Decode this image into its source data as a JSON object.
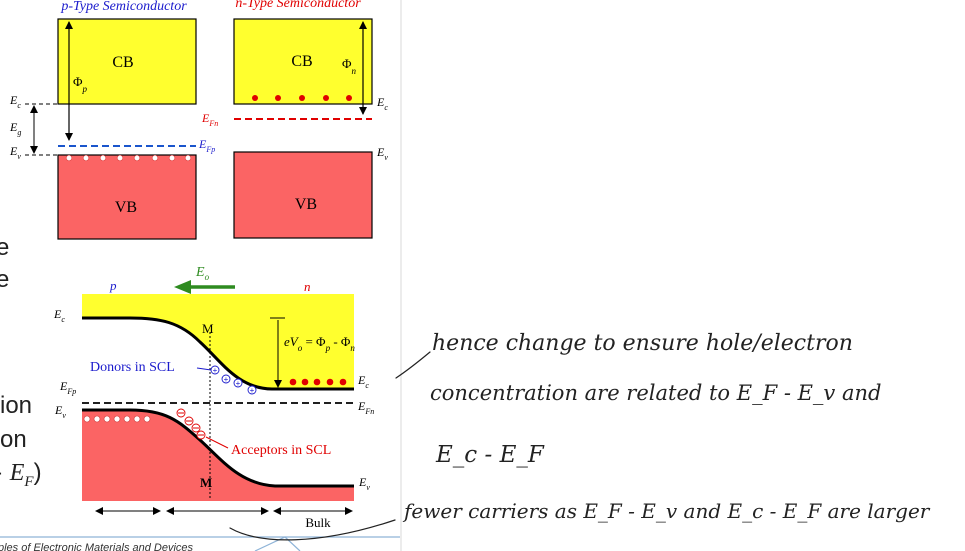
{
  "slide": {
    "left_fragments": [
      "e",
      "e",
      "ion",
      "on",
      "E",
      "F",
      ")"
    ],
    "footer_text": "ples of Electronic Materials and Devices"
  },
  "p_type": {
    "title": "p-Type Semiconductor",
    "cb": "CB",
    "vb": "VB",
    "phi": "Φ",
    "phi_sub": "p",
    "ec": "E",
    "ec_sub": "c",
    "eg": "E",
    "eg_sub": "g",
    "ev": "E",
    "ev_sub": "v",
    "efp": "E",
    "efp_sub": "Fp"
  },
  "n_type": {
    "title": "n-Type Semiconductor",
    "cb": "CB",
    "vb": "VB",
    "phi": "Φ",
    "phi_sub": "n",
    "ec": "E",
    "ec_sub": "c",
    "ev": "E",
    "ev_sub": "v",
    "efn": "E",
    "efn_sub": "Fn"
  },
  "junction": {
    "field": "E",
    "field_sub": "o",
    "p_label": "p",
    "n_label": "n",
    "m_label": "M",
    "donors": "Donors in SCL",
    "acceptors": "Acceptors in SCL",
    "bulk": "Bulk",
    "barrier_ev": "eV",
    "barrier_sub": "o",
    "barrier_eq": " = Φ",
    "barrier_p": "p",
    "barrier_minus": " - Φ",
    "barrier_n": "n",
    "ec": "E",
    "ec_sub": "c",
    "ev": "E",
    "ev_sub": "v",
    "efp": "E",
    "efp_sub": "Fp",
    "ec_r": "E",
    "ec_r_sub": "c",
    "efn_r": "E",
    "efn_r_sub": "Fn",
    "ev_r": "E",
    "ev_r_sub": "v"
  },
  "notes": {
    "line1": "hence change to ensure hole/electron",
    "line2": "concentration are related to E_F - E_v and",
    "line3": "E_c - E_F",
    "line4": "fewer carriers as E_F - E_v and E_c - E_F are larger"
  },
  "colors": {
    "band_yellow": "#ffff2e",
    "band_red": "#fb6464",
    "p_blue": "#1a1acc",
    "n_red": "#e00000",
    "field_green": "#2e8b20"
  }
}
